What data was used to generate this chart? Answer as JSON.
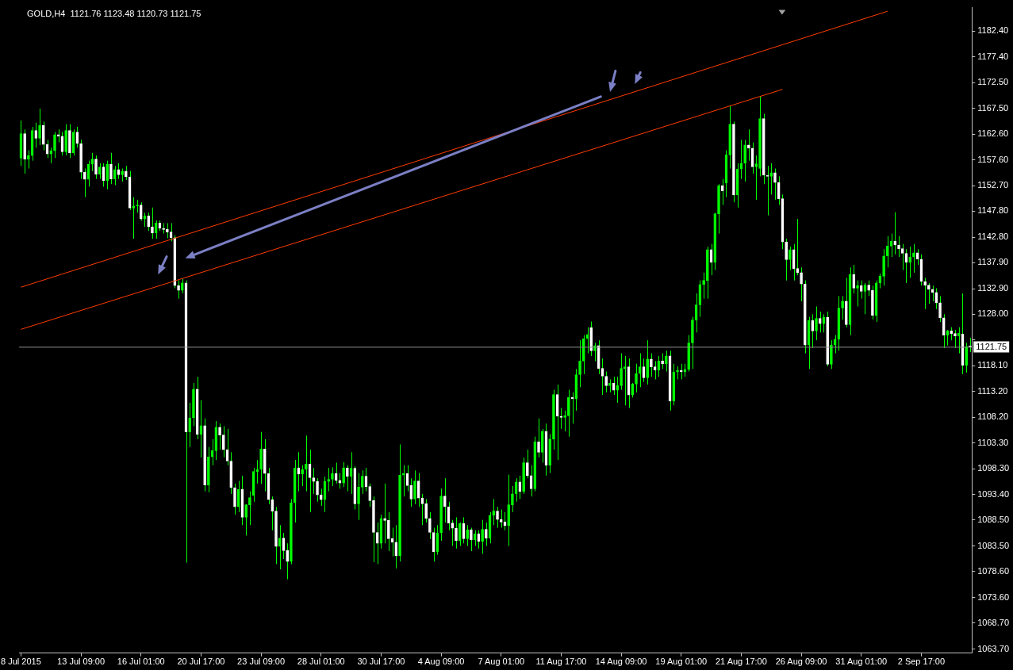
{
  "chart_data": {
    "type": "candlestick",
    "title": "GOLD,H4  1121.76 1123.48 1120.73 1121.75",
    "categories": [
      "8 Jul 2015",
      null,
      null,
      null,
      null,
      null,
      null,
      null,
      null,
      null,
      null,
      null,
      null,
      null,
      null,
      null,
      "13 Jul 09:00",
      null,
      null,
      null,
      null,
      null,
      null,
      null,
      null,
      null,
      null,
      null,
      null,
      null,
      null,
      null,
      "16 Jul 01:00",
      null,
      null,
      null,
      null,
      null,
      null,
      null,
      null,
      null,
      null,
      null,
      null,
      null,
      null,
      null,
      "20 Jul 17:00",
      null,
      null,
      null,
      null,
      null,
      null,
      null,
      null,
      null,
      null,
      null,
      null,
      null,
      null,
      null,
      "23 Jul 09:00",
      null,
      null,
      null,
      null,
      null,
      null,
      null,
      null,
      null,
      null,
      null,
      null,
      null,
      null,
      null,
      "28 Jul 01:00",
      null,
      null,
      null,
      null,
      null,
      null,
      null,
      null,
      null,
      null,
      null,
      null,
      null,
      null,
      null,
      "30 Jul 17:00",
      null,
      null,
      null,
      null,
      null,
      null,
      null,
      null,
      null,
      null,
      null,
      null,
      null,
      null,
      null,
      "4 Aug 09:00",
      null,
      null,
      null,
      null,
      null,
      null,
      null,
      null,
      null,
      null,
      null,
      null,
      null,
      null,
      null,
      "7 Aug 01:00",
      null,
      null,
      null,
      null,
      null,
      null,
      null,
      null,
      null,
      null,
      null,
      null,
      null,
      null,
      null,
      "11 Aug 17:00",
      null,
      null,
      null,
      null,
      null,
      null,
      null,
      null,
      null,
      null,
      null,
      null,
      null,
      null,
      null,
      "14 Aug 09:00",
      null,
      null,
      null,
      null,
      null,
      null,
      null,
      null,
      null,
      null,
      null,
      null,
      null,
      null,
      null,
      "19 Aug 01:00",
      null,
      null,
      null,
      null,
      null,
      null,
      null,
      null,
      null,
      null,
      null,
      null,
      null,
      null,
      null,
      "21 Aug 17:00",
      null,
      null,
      null,
      null,
      null,
      null,
      null,
      null,
      null,
      null,
      null,
      null,
      null,
      null,
      null,
      "26 Aug 09:00",
      null,
      null,
      null,
      null,
      null,
      null,
      null,
      null,
      null,
      null,
      null,
      null,
      null,
      null,
      null,
      "31 Aug 01:00",
      null,
      null,
      null,
      null,
      null,
      null,
      null,
      null,
      null,
      null,
      null,
      null,
      null,
      null,
      null,
      "2 Sep 17:00",
      null,
      null,
      null,
      null,
      null,
      null,
      null,
      null,
      null,
      null,
      null,
      null,
      null
    ],
    "color": "#00ff00",
    "colors": [
      "#00ff00",
      "#ffffff",
      "#00ff00",
      "#00ff00",
      "#ffffff",
      "#00ff00",
      "#ffffff",
      "#ffffff",
      "#00ff00",
      "#00ff00",
      "#ffffff",
      "#ffffff",
      "#00ff00",
      "#ffffff",
      "#00ff00",
      "#ffffff",
      "#ffffff",
      "#ffffff",
      "#00ff00",
      "#00ff00",
      "#ffffff",
      "#00ff00",
      "#ffffff",
      "#00ff00",
      "#ffffff",
      "#00ff00",
      "#ffffff",
      "#00ff00",
      "#ffffff",
      "#ffffff",
      "#00ff00",
      "#00ff00",
      "#ffffff",
      "#00ff00",
      "#ffffff",
      "#ffffff",
      "#00ff00",
      "#ffffff",
      "#ffffff",
      "#ffffff",
      "#ffffff",
      "#ffffff",
      "#ffffff",
      "#00ff00",
      "#ffffff",
      "#00ff00",
      "#00ff00",
      "#ffffff",
      "#00ff00",
      "#ffffff",
      "#00ff00",
      "#00ff00",
      "#00ff00",
      "#ffffff",
      "#ffffff",
      "#ffffff",
      "#ffffff",
      "#ffffff",
      "#00ff00",
      "#ffffff",
      "#00ff00",
      "#00ff00",
      "#00ff00",
      "#00ff00",
      "#00ff00",
      "#ffffff",
      "#ffffff",
      "#ffffff",
      "#ffffff",
      "#00ff00",
      "#ffffff",
      "#ffffff",
      "#00ff00",
      "#00ff00",
      "#ffffff",
      "#00ff00",
      "#00ff00",
      "#ffffff",
      "#ffffff",
      "#ffffff",
      "#ffffff",
      "#00ff00",
      "#00ff00",
      "#00ff00",
      "#ffffff",
      "#ffffff",
      "#00ff00",
      "#ffffff",
      "#00ff00",
      "#ffffff",
      "#00ff00",
      "#00ff00",
      "#ffffff",
      "#ffffff",
      "#ffffff",
      "#ffffff",
      "#00ff00",
      "#ffffff",
      "#ffffff",
      "#ffffff",
      "#ffffff",
      "#00ff00",
      "#00ff00",
      "#ffffff",
      "#ffffff",
      "#00ff00",
      "#ffffff",
      "#ffffff",
      "#ffffff",
      "#ffffff",
      "#ffffff",
      "#00ff00",
      "#00ff00",
      "#ffffff",
      "#ffffff",
      "#ffffff",
      "#ffffff",
      "#00ff00",
      "#ffffff",
      "#00ff00",
      "#ffffff",
      "#00ff00",
      "#ffffff",
      "#00ff00",
      "#ffffff",
      "#00ff00",
      "#00ff00",
      "#ffffff",
      "#ffffff",
      "#ffffff",
      "#00ff00",
      "#00ff00",
      "#00ff00",
      "#ffffff",
      "#00ff00",
      "#ffffff",
      "#ffffff",
      "#00ff00",
      "#ffffff",
      "#00ff00",
      "#ffffff",
      "#00ff00",
      "#00ff00",
      "#ffffff",
      "#ffffff",
      "#00ff00",
      "#00ff00",
      "#ffffff",
      "#00ff00",
      "#00ff00",
      "#00ff00",
      "#00ff00",
      "#ffffff",
      "#00ff00",
      "#ffffff",
      "#ffffff",
      "#ffffff",
      "#00ff00",
      "#ffffff",
      "#00ff00",
      "#00ff00",
      "#00ff00",
      "#ffffff",
      "#00ff00",
      "#00ff00",
      "#00ff00",
      "#ffffff",
      "#00ff00",
      "#ffffff",
      "#ffffff",
      "#00ff00",
      "#ffffff",
      "#00ff00",
      "#ffffff",
      "#00ff00",
      "#00ff00",
      "#ffffff",
      "#00ff00",
      "#00ff00",
      "#00ff00",
      "#00ff00",
      "#00ff00",
      "#00ff00",
      "#00ff00",
      "#ffffff",
      "#00ff00",
      "#00ff00",
      "#ffffff",
      "#00ff00",
      "#00ff00",
      "#ffffff",
      "#00ff00",
      "#00ff00",
      "#00ff00",
      "#ffffff",
      "#ffffff",
      "#00ff00",
      "#00ff00",
      "#ffffff",
      "#ffffff",
      "#00ff00",
      "#ffffff",
      "#ffffff",
      "#ffffff",
      "#ffffff",
      "#00ff00",
      "#ffffff",
      "#ffffff",
      "#ffffff",
      "#ffffff",
      "#00ff00",
      "#ffffff",
      "#00ff00",
      "#ffffff",
      "#00ff00",
      "#ffffff",
      "#00ff00",
      "#00ff00",
      "#00ff00",
      "#00ff00",
      "#ffffff",
      "#00ff00",
      "#ffffff",
      "#00ff00",
      "#ffffff",
      "#00ff00",
      "#ffffff",
      "#ffffff",
      "#00ff00",
      "#00ff00",
      "#00ff00",
      "#00ff00",
      "#00ff00",
      "#ffffff",
      "#ffffff",
      "#ffffff",
      "#ffffff",
      "#00ff00",
      "#00ff00",
      "#ffffff",
      "#ffffff",
      "#ffffff",
      "#ffffff",
      "#ffffff",
      "#ffffff",
      "#ffffff",
      "#ffffff",
      "#00ff00",
      "#ffffff",
      "#ffffff",
      "#00ff00",
      "#ffffff",
      "#00ff00",
      "#ffffff"
    ],
    "ohlc": [
      [
        1158.0,
        1165.2,
        1156.5,
        1162.7
      ],
      [
        1162.7,
        1163.5,
        1155.0,
        1157.8
      ],
      [
        1157.8,
        1159.5,
        1156.0,
        1158.5
      ],
      [
        1158.5,
        1164.0,
        1157.5,
        1163.3
      ],
      [
        1163.3,
        1164.8,
        1160.0,
        1161.8
      ],
      [
        1161.8,
        1167.5,
        1160.5,
        1164.3
      ],
      [
        1164.3,
        1165.0,
        1159.5,
        1160.6
      ],
      [
        1160.6,
        1161.5,
        1158.0,
        1158.8
      ],
      [
        1158.8,
        1160.0,
        1157.0,
        1159.4
      ],
      [
        1159.4,
        1163.0,
        1158.0,
        1162.5
      ],
      [
        1162.5,
        1163.5,
        1161.0,
        1162.2
      ],
      [
        1162.2,
        1163.0,
        1158.5,
        1159.2
      ],
      [
        1159.2,
        1164.5,
        1158.5,
        1163.3
      ],
      [
        1163.3,
        1164.5,
        1158.0,
        1159.0
      ],
      [
        1159.0,
        1163.5,
        1158.5,
        1163.0
      ],
      [
        1163.0,
        1164.0,
        1160.0,
        1160.8
      ],
      [
        1160.8,
        1161.5,
        1154.0,
        1155.3
      ],
      [
        1155.3,
        1156.0,
        1150.5,
        1153.9
      ],
      [
        1153.9,
        1157.5,
        1152.5,
        1156.8
      ],
      [
        1156.8,
        1159.0,
        1155.5,
        1157.8
      ],
      [
        1157.8,
        1158.5,
        1154.0,
        1154.9
      ],
      [
        1154.9,
        1157.0,
        1154.0,
        1156.3
      ],
      [
        1156.3,
        1157.0,
        1152.5,
        1153.7
      ],
      [
        1153.7,
        1157.5,
        1152.0,
        1156.8
      ],
      [
        1156.8,
        1159.0,
        1153.0,
        1154.0
      ],
      [
        1154.0,
        1156.5,
        1152.8,
        1155.8
      ],
      [
        1155.8,
        1157.0,
        1154.0,
        1154.8
      ],
      [
        1154.8,
        1156.0,
        1153.5,
        1155.5
      ],
      [
        1155.5,
        1156.5,
        1153.8,
        1154.4
      ],
      [
        1154.4,
        1155.5,
        1148.0,
        1148.4
      ],
      [
        1148.4,
        1150.5,
        1142.5,
        1148.8
      ],
      [
        1148.8,
        1150.0,
        1147.5,
        1149.0
      ],
      [
        1149.0,
        1149.5,
        1146.0,
        1146.3
      ],
      [
        1146.3,
        1147.5,
        1144.8,
        1146.9
      ],
      [
        1146.9,
        1147.5,
        1144.0,
        1144.8
      ],
      [
        1144.8,
        1148.5,
        1142.5,
        1143.6
      ],
      [
        1143.6,
        1146.0,
        1142.5,
        1145.5
      ],
      [
        1145.5,
        1146.0,
        1144.0,
        1144.5
      ],
      [
        1144.5,
        1145.5,
        1143.5,
        1144.3
      ],
      [
        1144.3,
        1145.5,
        1142.6,
        1143.8
      ],
      [
        1143.8,
        1145.5,
        1142.0,
        1142.7
      ],
      [
        1142.7,
        1143.2,
        1133.0,
        1133.5
      ],
      [
        1133.5,
        1134.5,
        1131.0,
        1132.6
      ],
      [
        1132.6,
        1134.8,
        1132.0,
        1134.0
      ],
      [
        1134.0,
        1134.5,
        1080.3,
        1105.4
      ],
      [
        1105.4,
        1111.0,
        1102.5,
        1108.1
      ],
      [
        1108.1,
        1114.8,
        1106.5,
        1113.6
      ],
      [
        1113.6,
        1116.0,
        1104.0,
        1104.9
      ],
      [
        1104.9,
        1111.5,
        1100.5,
        1106.6
      ],
      [
        1106.6,
        1108.0,
        1094.0,
        1095.2
      ],
      [
        1095.2,
        1102.5,
        1093.8,
        1100.6
      ],
      [
        1100.6,
        1104.0,
        1099.0,
        1101.8
      ],
      [
        1101.8,
        1107.5,
        1100.0,
        1106.3
      ],
      [
        1106.3,
        1107.0,
        1102.0,
        1104.8
      ],
      [
        1104.8,
        1106.5,
        1100.5,
        1102.0
      ],
      [
        1102.0,
        1106.0,
        1099.0,
        1099.8
      ],
      [
        1099.8,
        1101.5,
        1093.5,
        1094.7
      ],
      [
        1094.7,
        1095.5,
        1089.5,
        1091.0
      ],
      [
        1091.0,
        1096.0,
        1090.0,
        1094.4
      ],
      [
        1094.4,
        1097.0,
        1087.5,
        1089.0
      ],
      [
        1089.0,
        1091.5,
        1085.5,
        1091.4
      ],
      [
        1091.4,
        1094.0,
        1087.5,
        1092.8
      ],
      [
        1093.2,
        1098.5,
        1092.0,
        1097.8
      ],
      [
        1097.8,
        1100.0,
        1095.5,
        1098.2
      ],
      [
        1098.2,
        1105.4,
        1095.4,
        1102.1
      ],
      [
        1102.1,
        1104.0,
        1094.0,
        1097.4
      ],
      [
        1097.4,
        1098.5,
        1091.5,
        1092.4
      ],
      [
        1092.4,
        1093.0,
        1086.5,
        1090.2
      ],
      [
        1090.2,
        1091.0,
        1080.0,
        1083.4
      ],
      [
        1083.4,
        1087.5,
        1079.0,
        1085.0
      ],
      [
        1085.0,
        1086.0,
        1081.0,
        1082.6
      ],
      [
        1082.6,
        1084.0,
        1077.1,
        1080.5
      ],
      [
        1080.5,
        1092.5,
        1080.0,
        1091.8
      ],
      [
        1091.8,
        1100.0,
        1088.0,
        1098.5
      ],
      [
        1098.5,
        1101.5,
        1094.0,
        1097.3
      ],
      [
        1097.3,
        1099.0,
        1095.0,
        1098.2
      ],
      [
        1098.2,
        1104.7,
        1094.0,
        1099.2
      ],
      [
        1099.2,
        1102.0,
        1090.0,
        1096.6
      ],
      [
        1096.6,
        1098.5,
        1093.5,
        1095.9
      ],
      [
        1095.9,
        1096.5,
        1092.0,
        1093.3
      ],
      [
        1093.3,
        1094.5,
        1091.2,
        1092.4
      ],
      [
        1092.4,
        1096.8,
        1090.0,
        1095.9
      ],
      [
        1095.9,
        1098.5,
        1094.0,
        1096.3
      ],
      [
        1096.3,
        1098.6,
        1095.0,
        1097.4
      ],
      [
        1097.4,
        1099.5,
        1095.5,
        1096.1
      ],
      [
        1096.1,
        1097.5,
        1094.5,
        1095.6
      ],
      [
        1095.6,
        1099.6,
        1094.8,
        1098.5
      ],
      [
        1098.5,
        1099.0,
        1094.0,
        1096.9
      ],
      [
        1096.9,
        1101.5,
        1093.5,
        1098.4
      ],
      [
        1098.4,
        1098.8,
        1090.5,
        1091.6
      ],
      [
        1091.6,
        1097.5,
        1088.5,
        1094.8
      ],
      [
        1094.8,
        1098.0,
        1093.5,
        1096.9
      ],
      [
        1096.9,
        1098.5,
        1094.0,
        1094.9
      ],
      [
        1094.9,
        1095.5,
        1091.0,
        1092.2
      ],
      [
        1092.2,
        1093.0,
        1080.4,
        1086.1
      ],
      [
        1086.1,
        1088.0,
        1080.0,
        1084.0
      ],
      [
        1084.0,
        1089.5,
        1083.0,
        1088.8
      ],
      [
        1088.8,
        1095.5,
        1084.0,
        1088.4
      ],
      [
        1088.4,
        1090.0,
        1082.5,
        1084.9
      ],
      [
        1084.9,
        1087.0,
        1081.5,
        1084.2
      ],
      [
        1084.2,
        1087.5,
        1079.2,
        1081.6
      ],
      [
        1081.6,
        1103.0,
        1080.5,
        1097.1
      ],
      [
        1097.1,
        1099.0,
        1093.0,
        1097.4
      ],
      [
        1097.4,
        1099.0,
        1094.0,
        1095.1
      ],
      [
        1095.1,
        1096.5,
        1091.0,
        1092.5
      ],
      [
        1092.5,
        1098.0,
        1091.5,
        1096.0
      ],
      [
        1096.0,
        1097.5,
        1091.0,
        1092.7
      ],
      [
        1092.7,
        1093.5,
        1087.5,
        1091.6
      ],
      [
        1091.6,
        1092.5,
        1088.0,
        1088.8
      ],
      [
        1088.8,
        1090.0,
        1084.8,
        1086.1
      ],
      [
        1086.1,
        1087.0,
        1080.5,
        1082.4
      ],
      [
        1082.4,
        1087.5,
        1081.8,
        1086.0
      ],
      [
        1086.0,
        1094.5,
        1084.5,
        1093.1
      ],
      [
        1093.1,
        1096.5,
        1088.0,
        1091.0
      ],
      [
        1091.0,
        1092.0,
        1086.5,
        1087.9
      ],
      [
        1087.9,
        1088.5,
        1083.5,
        1086.9
      ],
      [
        1086.9,
        1089.0,
        1083.0,
        1084.5
      ],
      [
        1084.5,
        1088.0,
        1083.5,
        1087.8
      ],
      [
        1087.8,
        1089.0,
        1084.0,
        1084.9
      ],
      [
        1084.9,
        1087.5,
        1083.5,
        1086.6
      ],
      [
        1086.6,
        1087.0,
        1082.5,
        1084.7
      ],
      [
        1084.7,
        1086.5,
        1083.5,
        1085.8
      ],
      [
        1085.8,
        1086.5,
        1083.0,
        1084.4
      ],
      [
        1084.4,
        1088.5,
        1082.0,
        1086.7
      ],
      [
        1086.7,
        1088.0,
        1083.5,
        1085.0
      ],
      [
        1085.0,
        1090.0,
        1084.0,
        1089.4
      ],
      [
        1089.4,
        1092.5,
        1087.5,
        1090.2
      ],
      [
        1090.2,
        1091.0,
        1087.0,
        1088.6
      ],
      [
        1088.6,
        1090.5,
        1087.0,
        1088.1
      ],
      [
        1088.1,
        1090.0,
        1086.5,
        1087.4
      ],
      [
        1087.4,
        1097.2,
        1083.5,
        1091.4
      ],
      [
        1091.4,
        1095.0,
        1090.0,
        1093.5
      ],
      [
        1093.5,
        1096.5,
        1092.0,
        1095.8
      ],
      [
        1095.8,
        1097.0,
        1092.5,
        1094.0
      ],
      [
        1094.0,
        1100.5,
        1093.5,
        1099.5
      ],
      [
        1099.5,
        1102.0,
        1096.5,
        1097.0
      ],
      [
        1097.0,
        1099.0,
        1093.0,
        1094.5
      ],
      [
        1094.5,
        1104.5,
        1094.0,
        1103.5
      ],
      [
        1103.5,
        1108.0,
        1100.5,
        1101.5
      ],
      [
        1101.5,
        1106.0,
        1099.5,
        1105.5
      ],
      [
        1105.5,
        1107.0,
        1097.0,
        1099.0
      ],
      [
        1099.0,
        1105.0,
        1097.5,
        1104.0
      ],
      [
        1104.0,
        1113.5,
        1102.0,
        1112.6
      ],
      [
        1112.6,
        1114.5,
        1100.0,
        1108.4
      ],
      [
        1108.4,
        1110.0,
        1106.0,
        1108.2
      ],
      [
        1108.2,
        1109.5,
        1105.5,
        1108.5
      ],
      [
        1108.5,
        1113.5,
        1104.5,
        1112.0
      ],
      [
        1112.0,
        1113.0,
        1107.0,
        1111.8
      ],
      [
        1111.8,
        1117.5,
        1109.5,
        1116.4
      ],
      [
        1116.4,
        1123.0,
        1114.0,
        1119.0
      ],
      [
        1119.0,
        1124.0,
        1116.5,
        1123.3
      ],
      [
        1123.3,
        1125.5,
        1120.5,
        1124.1
      ],
      [
        1125.4,
        1126.6,
        1120.0,
        1121.0
      ],
      [
        1121.0,
        1122.5,
        1119.0,
        1122.0
      ],
      [
        1122.0,
        1123.0,
        1116.5,
        1117.6
      ],
      [
        1117.6,
        1119.5,
        1112.5,
        1116.1
      ],
      [
        1116.1,
        1117.0,
        1113.0,
        1114.3
      ],
      [
        1114.3,
        1115.5,
        1113.0,
        1114.8
      ],
      [
        1114.8,
        1116.0,
        1112.5,
        1113.4
      ],
      [
        1113.4,
        1116.0,
        1111.0,
        1114.3
      ],
      [
        1114.3,
        1120.5,
        1113.5,
        1117.6
      ],
      [
        1117.6,
        1120.0,
        1110.5,
        1117.9
      ],
      [
        1117.9,
        1119.5,
        1110.0,
        1112.5
      ],
      [
        1112.5,
        1114.8,
        1112.0,
        1114.6
      ],
      [
        1114.6,
        1118.5,
        1113.0,
        1116.6
      ],
      [
        1116.6,
        1120.5,
        1114.0,
        1117.9
      ],
      [
        1117.9,
        1119.5,
        1115.0,
        1115.8
      ],
      [
        1115.8,
        1123.0,
        1114.5,
        1119.4
      ],
      [
        1119.4,
        1120.5,
        1116.0,
        1117.9
      ],
      [
        1117.9,
        1119.0,
        1115.5,
        1117.3
      ],
      [
        1117.3,
        1120.0,
        1116.0,
        1119.0
      ],
      [
        1119.0,
        1120.5,
        1117.5,
        1118.5
      ],
      [
        1118.5,
        1121.0,
        1117.0,
        1120.0
      ],
      [
        1120.0,
        1121.0,
        1109.5,
        1111.3
      ],
      [
        1111.3,
        1118.5,
        1110.5,
        1116.9
      ],
      [
        1116.9,
        1118.0,
        1115.5,
        1117.2
      ],
      [
        1117.2,
        1118.5,
        1115.5,
        1117.0
      ],
      [
        1117.0,
        1118.5,
        1116.0,
        1117.4
      ],
      [
        1117.4,
        1124.0,
        1117.0,
        1122.5
      ],
      [
        1122.5,
        1127.5,
        1117.5,
        1126.9
      ],
      [
        1126.9,
        1132.0,
        1124.5,
        1129.8
      ],
      [
        1129.8,
        1134.5,
        1127.5,
        1133.7
      ],
      [
        1133.7,
        1136.0,
        1131.0,
        1134.5
      ],
      [
        1134.5,
        1141.0,
        1131.0,
        1140.4
      ],
      [
        1140.4,
        1141.5,
        1135.5,
        1138.0
      ],
      [
        1138.0,
        1147.5,
        1136.5,
        1147.3
      ],
      [
        1147.3,
        1153.0,
        1143.5,
        1152.7
      ],
      [
        1152.7,
        1154.0,
        1149.0,
        1151.7
      ],
      [
        1153.2,
        1159.5,
        1150.5,
        1158.6
      ],
      [
        1158.6,
        1168.0,
        1156.0,
        1164.5
      ],
      [
        1164.5,
        1165.0,
        1149.5,
        1150.9
      ],
      [
        1150.9,
        1157.0,
        1148.5,
        1155.9
      ],
      [
        1155.9,
        1161.5,
        1154.0,
        1157.0
      ],
      [
        1157.0,
        1161.5,
        1153.5,
        1160.5
      ],
      [
        1160.5,
        1163.5,
        1157.5,
        1159.9
      ],
      [
        1159.9,
        1161.0,
        1155.0,
        1156.3
      ],
      [
        1156.3,
        1158.5,
        1150.0,
        1156.9
      ],
      [
        1156.0,
        1169.8,
        1154.5,
        1165.6
      ],
      [
        1165.6,
        1166.5,
        1153.0,
        1154.7
      ],
      [
        1154.7,
        1156.5,
        1147.0,
        1154.5
      ],
      [
        1154.5,
        1157.0,
        1151.0,
        1155.2
      ],
      [
        1155.2,
        1156.0,
        1150.0,
        1153.3
      ],
      [
        1153.3,
        1154.5,
        1149.0,
        1150.2
      ],
      [
        1150.2,
        1151.0,
        1140.5,
        1141.9
      ],
      [
        1141.9,
        1142.5,
        1134.5,
        1138.5
      ],
      [
        1138.5,
        1141.0,
        1136.5,
        1140.4
      ],
      [
        1140.4,
        1141.5,
        1134.5,
        1136.8
      ],
      [
        1136.8,
        1146.3,
        1135.5,
        1136.0
      ],
      [
        1136.0,
        1137.0,
        1130.5,
        1133.8
      ],
      [
        1133.8,
        1134.5,
        1120.5,
        1122.1
      ],
      [
        1122.1,
        1127.5,
        1117.5,
        1126.8
      ],
      [
        1126.8,
        1128.0,
        1121.5,
        1124.8
      ],
      [
        1124.8,
        1129.5,
        1123.0,
        1127.2
      ],
      [
        1127.2,
        1128.5,
        1124.5,
        1126.2
      ],
      [
        1126.2,
        1128.0,
        1124.5,
        1127.4
      ],
      [
        1127.4,
        1128.5,
        1118.0,
        1118.4
      ],
      [
        1118.4,
        1123.0,
        1117.5,
        1122.1
      ],
      [
        1122.1,
        1124.0,
        1120.5,
        1123.2
      ],
      [
        1123.2,
        1131.5,
        1121.0,
        1129.2
      ],
      [
        1129.2,
        1131.5,
        1127.0,
        1130.5
      ],
      [
        1130.5,
        1135.0,
        1125.5,
        1126.0
      ],
      [
        1126.0,
        1137.0,
        1124.0,
        1135.6
      ],
      [
        1135.6,
        1137.5,
        1132.0,
        1133.0
      ],
      [
        1133.0,
        1134.5,
        1129.5,
        1133.5
      ],
      [
        1133.5,
        1134.5,
        1131.0,
        1132.4
      ],
      [
        1132.4,
        1134.0,
        1128.0,
        1133.6
      ],
      [
        1133.6,
        1134.5,
        1131.5,
        1132.6
      ],
      [
        1132.6,
        1133.5,
        1127.0,
        1127.8
      ],
      [
        1127.8,
        1134.5,
        1126.5,
        1134.0
      ],
      [
        1134.0,
        1135.8,
        1133.0,
        1135.3
      ],
      [
        1135.3,
        1140.5,
        1133.5,
        1139.2
      ],
      [
        1139.2,
        1143.0,
        1137.0,
        1141.1
      ],
      [
        1141.1,
        1143.5,
        1139.0,
        1142.0
      ],
      [
        1142.0,
        1147.6,
        1139.5,
        1141.3
      ],
      [
        1141.3,
        1143.0,
        1139.0,
        1140.6
      ],
      [
        1140.6,
        1141.5,
        1136.5,
        1139.7
      ],
      [
        1139.7,
        1140.5,
        1134.0,
        1138.0
      ],
      [
        1138.0,
        1141.0,
        1135.0,
        1139.0
      ],
      [
        1139.0,
        1141.5,
        1136.0,
        1139.8
      ],
      [
        1139.8,
        1140.5,
        1137.5,
        1138.6
      ],
      [
        1138.6,
        1139.5,
        1133.5,
        1134.3
      ],
      [
        1134.3,
        1135.0,
        1129.0,
        1133.6
      ],
      [
        1133.6,
        1134.0,
        1130.0,
        1132.8
      ],
      [
        1132.8,
        1133.5,
        1130.5,
        1132.2
      ],
      [
        1132.2,
        1133.0,
        1129.0,
        1130.2
      ],
      [
        1130.2,
        1131.5,
        1126.5,
        1127.3
      ],
      [
        1127.3,
        1128.0,
        1121.5,
        1124.0
      ],
      [
        1124.0,
        1125.0,
        1122.0,
        1124.8
      ],
      [
        1124.8,
        1125.5,
        1123.0,
        1124.3
      ],
      [
        1124.3,
        1125.0,
        1121.5,
        1123.8
      ],
      [
        1123.8,
        1125.5,
        1120.5,
        1124.4
      ],
      [
        1124.2,
        1132.0,
        1116.5,
        1118.2
      ],
      [
        1118.2,
        1122.5,
        1116.8,
        1121.76
      ],
      [
        1121.76,
        1123.48,
        1120.73,
        1121.75
      ]
    ],
    "series": [
      {
        "type": "line",
        "color": "#ff3c00",
        "values": [
          1133.2,
          null,
          null,
          null,
          null,
          null,
          null,
          null,
          null,
          null,
          null,
          null,
          null,
          null,
          null,
          null,
          null,
          null,
          null,
          null,
          null,
          null,
          null,
          null,
          null,
          null,
          null,
          null,
          null,
          null,
          null,
          null,
          null,
          null,
          null,
          null,
          null,
          null,
          null,
          null,
          null,
          null,
          null,
          null,
          null,
          null,
          null,
          null,
          null,
          null,
          null,
          null,
          null,
          null,
          null,
          null,
          null,
          null,
          null,
          null,
          null,
          null,
          null,
          null,
          null,
          null,
          null,
          null,
          null,
          null,
          null,
          null,
          null,
          null,
          null,
          null,
          null,
          null,
          null,
          null,
          null,
          null,
          null,
          null,
          null,
          null,
          null,
          null,
          null,
          null,
          null,
          null,
          null,
          null,
          null,
          null,
          null,
          null,
          null,
          null,
          null,
          null,
          null,
          null,
          null,
          null,
          null,
          null,
          null,
          null,
          null,
          null,
          null,
          null,
          null,
          null,
          null,
          null,
          null,
          null,
          null,
          null,
          null,
          null,
          null,
          null,
          null,
          null,
          null,
          null,
          null,
          null,
          null,
          null,
          null,
          null,
          null,
          null,
          null,
          null,
          null,
          null,
          null,
          null,
          null,
          null,
          null,
          null,
          null,
          null,
          null,
          null,
          null,
          null,
          null,
          null,
          null,
          null,
          null,
          null,
          null,
          null,
          null,
          null,
          null,
          null,
          null,
          null,
          null,
          null,
          null,
          null,
          null,
          null,
          null,
          null,
          null,
          null,
          null,
          null,
          null,
          null,
          null,
          null,
          null,
          null,
          null,
          null,
          null,
          null,
          null,
          null,
          null,
          null,
          null,
          null,
          null,
          null,
          null,
          null,
          null,
          null,
          null,
          null,
          null,
          null,
          null,
          null,
          null,
          null,
          null,
          null,
          null,
          null,
          null,
          null,
          null,
          null,
          null,
          null,
          null,
          null,
          null,
          null,
          null,
          null,
          null,
          null,
          null,
          null,
          null,
          1186.2,
          null,
          null,
          null,
          null,
          null,
          null,
          null,
          null,
          null,
          null,
          null,
          null,
          null,
          null,
          null,
          null,
          null,
          null,
          null,
          null,
          null,
          null
        ]
      },
      {
        "type": "line",
        "color": "#ff3c00",
        "values": [
          1125.1,
          null,
          null,
          null,
          null,
          null,
          null,
          null,
          null,
          null,
          null,
          null,
          null,
          null,
          null,
          null,
          null,
          null,
          null,
          null,
          null,
          null,
          null,
          null,
          null,
          null,
          null,
          null,
          null,
          null,
          null,
          null,
          null,
          null,
          null,
          null,
          null,
          null,
          null,
          null,
          null,
          null,
          null,
          null,
          null,
          null,
          null,
          null,
          null,
          null,
          null,
          null,
          null,
          null,
          null,
          null,
          null,
          null,
          null,
          null,
          null,
          null,
          null,
          null,
          null,
          null,
          null,
          null,
          null,
          null,
          null,
          null,
          null,
          null,
          null,
          null,
          null,
          null,
          null,
          null,
          null,
          null,
          null,
          null,
          null,
          null,
          null,
          null,
          null,
          null,
          null,
          null,
          null,
          null,
          null,
          null,
          null,
          null,
          null,
          null,
          null,
          null,
          null,
          null,
          null,
          null,
          null,
          null,
          null,
          null,
          null,
          null,
          null,
          null,
          null,
          null,
          null,
          null,
          null,
          null,
          null,
          null,
          null,
          null,
          null,
          null,
          null,
          null,
          null,
          null,
          null,
          null,
          null,
          null,
          null,
          null,
          null,
          null,
          null,
          null,
          null,
          null,
          null,
          null,
          null,
          null,
          null,
          null,
          null,
          null,
          null,
          null,
          null,
          null,
          null,
          null,
          null,
          null,
          null,
          null,
          null,
          null,
          null,
          null,
          null,
          null,
          null,
          null,
          null,
          null,
          null,
          null,
          null,
          null,
          null,
          null,
          null,
          null,
          null,
          null,
          null,
          null,
          null,
          null,
          null,
          null,
          null,
          null,
          null,
          null,
          null,
          null,
          null,
          null,
          null,
          null,
          null,
          null,
          null,
          null,
          null,
          null,
          null,
          1171.2,
          null,
          null,
          null,
          null,
          null,
          null,
          null,
          null,
          null,
          null,
          null,
          null,
          null,
          null,
          null,
          null,
          null,
          null,
          null,
          null,
          null,
          null,
          null,
          null,
          null,
          null,
          null,
          null,
          null,
          null,
          null,
          null,
          null,
          null,
          null,
          null,
          null,
          null,
          null,
          null,
          null,
          null,
          null,
          null,
          null,
          null,
          null,
          null,
          null,
          null
        ]
      }
    ],
    "ylim": [
      1062.9,
      1186.9
    ],
    "yticks": [
      {
        "value": 1182.4,
        "label": "1182.40"
      },
      {
        "value": 1177.4,
        "label": "1177.40"
      },
      {
        "value": 1172.5,
        "label": "1172.50"
      },
      {
        "value": 1167.5,
        "label": "1167.50"
      },
      {
        "value": 1162.6,
        "label": "1162.60"
      },
      {
        "value": 1157.6,
        "label": "1157.60"
      },
      {
        "value": 1152.7,
        "label": "1152.70"
      },
      {
        "value": 1147.8,
        "label": "1147.80"
      },
      {
        "value": 1142.8,
        "label": "1142.80"
      },
      {
        "value": 1137.9,
        "label": "1137.90"
      },
      {
        "value": 1132.9,
        "label": "1132.90"
      },
      {
        "value": 1128.0,
        "label": "1128.00"
      },
      {
        "value": 1123.1,
        "label": null
      },
      {
        "value": 1118.1,
        "label": "1118.10"
      },
      {
        "value": 1113.2,
        "label": "1113.20"
      },
      {
        "value": 1108.2,
        "label": "1108.20"
      },
      {
        "value": 1103.3,
        "label": "1103.30"
      },
      {
        "value": 1098.3,
        "label": "1098.30"
      },
      {
        "value": 1093.4,
        "label": "1093.40"
      },
      {
        "value": 1088.5,
        "label": "1088.50"
      },
      {
        "value": 1083.5,
        "label": "1083.50"
      },
      {
        "value": 1078.6,
        "label": "1078.60"
      },
      {
        "value": 1073.6,
        "label": "1073.60"
      },
      {
        "value": 1068.7,
        "label": "1068.70"
      },
      {
        "value": 1063.7,
        "label": "1063.70"
      }
    ],
    "ref_lines": [
      {
        "axis": "y",
        "value": 1121.75,
        "label": "1121.75",
        "color": "#8c8c8c"
      }
    ],
    "legend": false,
    "grid": false
  }
}
